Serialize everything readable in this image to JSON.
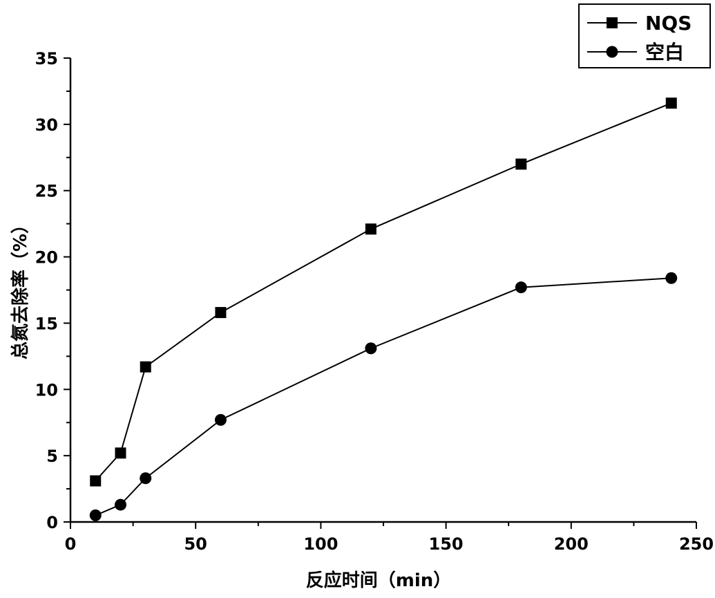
{
  "chart_data": {
    "type": "line",
    "xlabel": "反应时间（min）",
    "ylabel": "总氮去除率（%）",
    "xlim": [
      0,
      250
    ],
    "ylim": [
      0,
      35
    ],
    "x_ticks": [
      0,
      50,
      100,
      150,
      200,
      250
    ],
    "y_ticks": [
      0,
      5,
      10,
      15,
      20,
      25,
      30,
      35
    ],
    "grid": false,
    "legend_position": "top-right",
    "x": [
      10,
      20,
      30,
      60,
      120,
      180,
      240
    ],
    "series": [
      {
        "name": "NQS",
        "marker": "square",
        "color": "#000000",
        "values": [
          3.1,
          5.2,
          11.7,
          15.8,
          22.1,
          27.0,
          31.6
        ]
      },
      {
        "name": "空白",
        "marker": "circle",
        "color": "#000000",
        "values": [
          0.5,
          1.3,
          3.3,
          7.7,
          13.1,
          17.7,
          18.4
        ]
      }
    ]
  }
}
